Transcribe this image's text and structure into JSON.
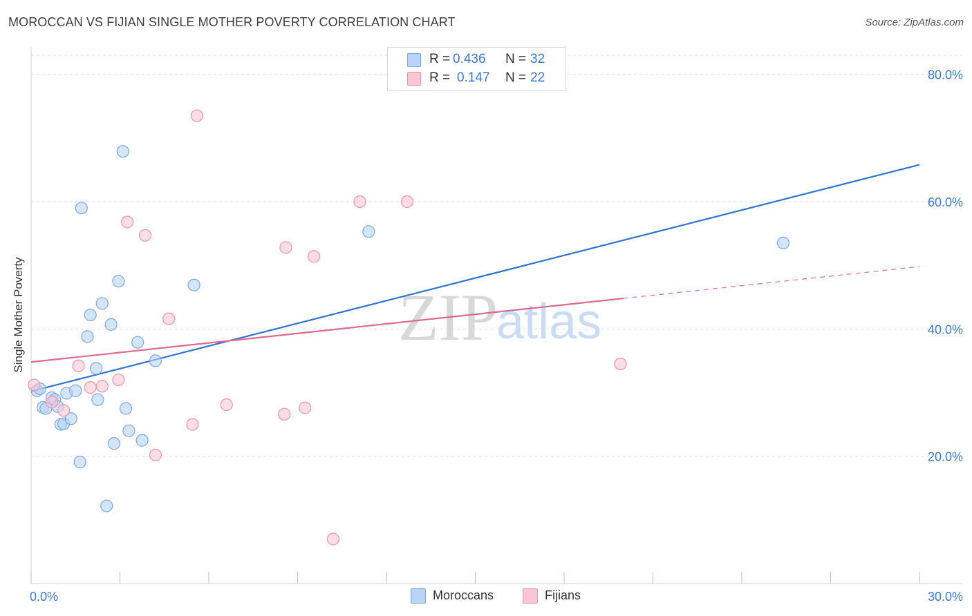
{
  "title": "MOROCCAN VS FIJIAN SINGLE MOTHER POVERTY CORRELATION CHART",
  "source": "Source: ZipAtlas.com",
  "legend": {
    "rows": [
      {
        "r_label": "R =",
        "r_value": "0.436",
        "n_label": "N =",
        "n_value": "32"
      },
      {
        "r_label": "R =",
        "r_value": "0.147",
        "n_label": "N =",
        "n_value": "22"
      }
    ]
  },
  "bottom_legend": [
    "Moroccans",
    "Fijians"
  ],
  "colors": {
    "moroccan_fill": "#b8d3f5",
    "moroccan_stroke": "#7aa8e2",
    "moroccan_line": "#2e73d0",
    "fijian_fill": "#f8c6d4",
    "fijian_stroke": "#ec93b0",
    "fijian_line": "#e06890",
    "axis_text": "#3a78d4",
    "grid": "#dedede",
    "watermark": "#d8d8d8"
  },
  "chart_data": {
    "type": "scatter",
    "title": "MOROCCAN VS FIJIAN SINGLE MOTHER POVERTY CORRELATION CHART",
    "xlabel": "",
    "ylabel": "Single Mother Poverty",
    "xlim": [
      0,
      30
    ],
    "ylim": [
      0,
      83
    ],
    "x_tick_labels": [
      "0.0%",
      "30.0%"
    ],
    "y_ticks": [
      20,
      40,
      60,
      80
    ],
    "y_tick_labels": [
      "20.0%",
      "40.0%",
      "60.0%",
      "80.0%"
    ],
    "grid": true,
    "watermark": "ZIPatlas",
    "series": [
      {
        "name": "Moroccans",
        "r": 0.436,
        "n": 32,
        "points": [
          [
            0.2,
            30.3
          ],
          [
            0.3,
            30.6
          ],
          [
            0.4,
            27.7
          ],
          [
            0.5,
            27.5
          ],
          [
            0.7,
            29.2
          ],
          [
            0.8,
            28.9
          ],
          [
            0.9,
            27.8
          ],
          [
            1.0,
            25.0
          ],
          [
            1.1,
            25.1
          ],
          [
            1.2,
            29.9
          ],
          [
            1.35,
            25.9
          ],
          [
            1.5,
            30.3
          ],
          [
            1.65,
            19.1
          ],
          [
            1.7,
            59.0
          ],
          [
            1.9,
            38.8
          ],
          [
            2.0,
            42.2
          ],
          [
            2.2,
            33.8
          ],
          [
            2.25,
            28.9
          ],
          [
            2.4,
            44.0
          ],
          [
            2.55,
            12.2
          ],
          [
            2.7,
            40.7
          ],
          [
            2.8,
            22.0
          ],
          [
            2.95,
            47.5
          ],
          [
            3.1,
            67.9
          ],
          [
            3.2,
            27.5
          ],
          [
            3.3,
            24.0
          ],
          [
            3.6,
            37.9
          ],
          [
            3.75,
            22.5
          ],
          [
            4.2,
            35.0
          ],
          [
            5.5,
            46.9
          ],
          [
            11.4,
            55.3
          ],
          [
            25.4,
            53.5
          ]
        ],
        "trend": {
          "x": [
            0,
            30
          ],
          "y": [
            30.2,
            65.8
          ]
        }
      },
      {
        "name": "Fijians",
        "r": 0.147,
        "n": 22,
        "points": [
          [
            0.1,
            31.2
          ],
          [
            0.7,
            28.5
          ],
          [
            1.1,
            27.2
          ],
          [
            1.6,
            34.2
          ],
          [
            2.0,
            30.8
          ],
          [
            2.4,
            31.0
          ],
          [
            2.95,
            32.0
          ],
          [
            3.25,
            56.8
          ],
          [
            3.85,
            54.7
          ],
          [
            4.2,
            20.2
          ],
          [
            4.65,
            41.6
          ],
          [
            5.45,
            25.0
          ],
          [
            5.6,
            73.5
          ],
          [
            6.6,
            28.1
          ],
          [
            8.55,
            26.6
          ],
          [
            8.6,
            52.8
          ],
          [
            9.25,
            27.6
          ],
          [
            9.55,
            51.4
          ],
          [
            10.2,
            7.0
          ],
          [
            11.1,
            60.0
          ],
          [
            12.7,
            60.0
          ],
          [
            19.9,
            34.5
          ]
        ],
        "trend": {
          "x": [
            0,
            20
          ],
          "y": [
            34.8,
            44.8
          ]
        },
        "trend_dashed": {
          "x": [
            20,
            30
          ],
          "y": [
            44.8,
            49.8
          ]
        }
      }
    ]
  }
}
